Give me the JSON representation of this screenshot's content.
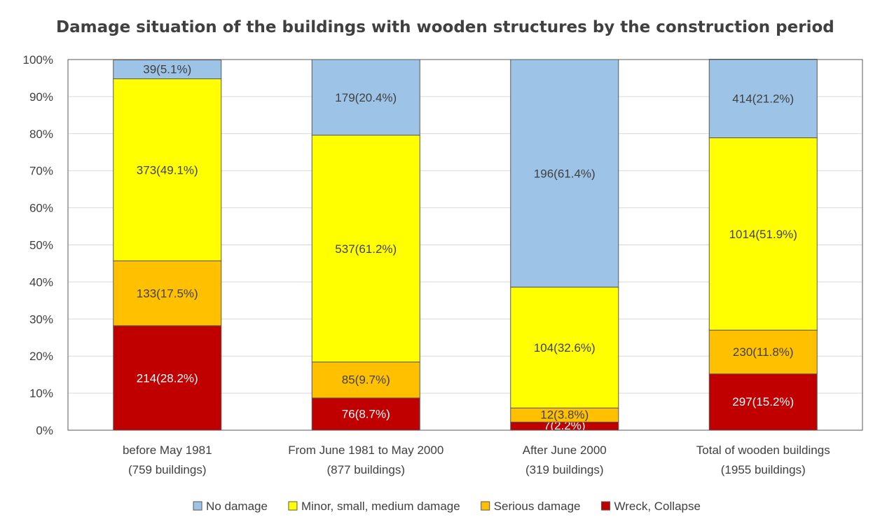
{
  "chart_data": {
    "type": "bar",
    "stacked": true,
    "normalized_percent": true,
    "title": "Damage situation of the buildings with wooden structures by the construction period",
    "xlabel": "",
    "ylabel": "",
    "ylim": [
      0,
      100
    ],
    "y_ticks": [
      "0%",
      "10%",
      "20%",
      "30%",
      "40%",
      "50%",
      "60%",
      "70%",
      "80%",
      "90%",
      "100%"
    ],
    "categories": [
      [
        "before May 1981",
        "(759 buildings)"
      ],
      [
        "From June 1981 to May 2000",
        "(877 buildings)"
      ],
      [
        "After June 2000",
        "(319 buildings)"
      ],
      [
        "Total of wooden buildings",
        "(1955 buildings)"
      ]
    ],
    "series": [
      {
        "name": "Wreck, Collapse",
        "color": "#c00000",
        "label_color": "#ffffff",
        "values": [
          28.2,
          8.7,
          2.2,
          15.2
        ],
        "labels": [
          "214(28.2%)",
          "76(8.7%)",
          "7(2.2%)",
          "297(15.2%)"
        ]
      },
      {
        "name": "Serious damage",
        "color": "#ffc000",
        "label_color": "#404040",
        "values": [
          17.5,
          9.7,
          3.8,
          11.8
        ],
        "labels": [
          "133(17.5%)",
          "85(9.7%)",
          "12(3.8%)",
          "230(11.8%)"
        ]
      },
      {
        "name": "Minor, small, medium damage",
        "color": "#ffff00",
        "label_color": "#404040",
        "values": [
          49.1,
          61.2,
          32.6,
          51.9
        ],
        "labels": [
          "373(49.1%)",
          "537(61.2%)",
          "104(32.6%)",
          "1014(51.9%)"
        ]
      },
      {
        "name": "No damage",
        "color": "#9dc3e6",
        "label_color": "#404040",
        "values": [
          5.1,
          20.4,
          61.4,
          21.2
        ],
        "labels": [
          "39(5.1%)",
          "179(20.4%)",
          "196(61.4%)",
          "414(21.2%)"
        ]
      }
    ],
    "legend_order": [
      "No damage",
      "Minor, small, medium damage",
      "Serious damage",
      "Wreck, Collapse"
    ],
    "legend_position": "bottom",
    "grid": true
  }
}
